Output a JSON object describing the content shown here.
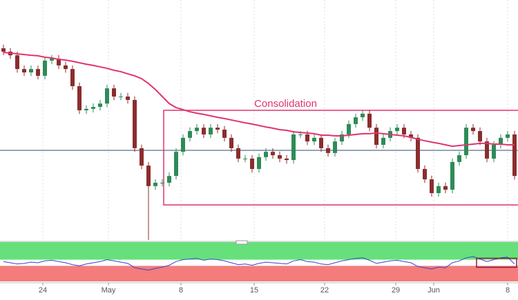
{
  "chart_data": {
    "type": "candlestick",
    "xlim": [
      -0.5,
      74.5
    ],
    "xticks": [
      {
        "value": 5.7,
        "label": "24"
      },
      {
        "value": 15.2,
        "label": "May"
      },
      {
        "value": 25.7,
        "label": "8"
      },
      {
        "value": 36.3,
        "label": "15"
      },
      {
        "value": 46.5,
        "label": "22"
      },
      {
        "value": 56.8,
        "label": "29"
      },
      {
        "value": 62.3,
        "label": "Jun"
      },
      {
        "value": 73,
        "label": "8"
      }
    ],
    "ylim": [
      0,
      100
    ],
    "grid": true,
    "up_color": "#2e8b57",
    "down_color": "#8b2d2d",
    "open": [
      80,
      78.6,
      77.1,
      71.4,
      70,
      71.4,
      68.6,
      74.9,
      75.7,
      72.9,
      71.4,
      64.3,
      54.3,
      54.9,
      55.7,
      57.1,
      63.4,
      60,
      60,
      58.6,
      38.6,
      31.4,
      22.9,
      24.3,
      24.3,
      27.1,
      37.1,
      42.9,
      45.7,
      47.1,
      44.3,
      47.1,
      46.3,
      42.9,
      38.6,
      34.3,
      34.3,
      30,
      34.9,
      37.1,
      35.7,
      34.3,
      33.7,
      44.3,
      44.3,
      41.4,
      42.9,
      38.6,
      36.6,
      41.4,
      44.3,
      48.6,
      51.4,
      52.9,
      47.1,
      40,
      42.9,
      45.7,
      47.1,
      44.3,
      42.9,
      30,
      25.7,
      20,
      22.9,
      21.4,
      32.9,
      35.7,
      47.1,
      45.7,
      41.4,
      34.3,
      40,
      42.9,
      44.3
    ],
    "high": [
      81.5,
      80.1,
      78.6,
      72.9,
      72.9,
      72.9,
      76.4,
      77.2,
      77.2,
      74.4,
      72.9,
      65.8,
      56.4,
      57.2,
      58.6,
      64.9,
      64.9,
      61.5,
      61.5,
      60.1,
      40.1,
      32.9,
      25.8,
      25.8,
      28.6,
      38.6,
      44.4,
      47.2,
      48.6,
      48.6,
      48.6,
      48.6,
      47.8,
      44.4,
      40.1,
      35.8,
      35.8,
      36.4,
      38.6,
      38.6,
      37.2,
      35.8,
      45.8,
      45.8,
      45.8,
      44.4,
      44.4,
      40.1,
      42.9,
      45.8,
      50.1,
      52.9,
      54.4,
      54.4,
      48.6,
      44.4,
      47.2,
      48.6,
      48.6,
      45.8,
      44.4,
      31.5,
      27.2,
      24.4,
      24.4,
      34.4,
      37.2,
      48.6,
      48.6,
      47.2,
      42.9,
      41.5,
      44.4,
      45.8,
      45.8
    ],
    "low": [
      77.1,
      75.6,
      69.9,
      68.5,
      68.5,
      67.1,
      67.1,
      73.4,
      71.4,
      69.9,
      62.8,
      52.8,
      52.8,
      53.4,
      54.2,
      55.6,
      58.5,
      58.5,
      57.1,
      37.1,
      29.9,
      0.6,
      21.4,
      22.8,
      22.8,
      25.6,
      35.6,
      41.4,
      44.2,
      42.8,
      42.8,
      44.8,
      41.4,
      37.1,
      32.8,
      32.8,
      28.5,
      28.5,
      33.4,
      34.2,
      32.8,
      32.2,
      32.2,
      42.8,
      39.9,
      39.9,
      37.1,
      35.1,
      35.1,
      39.9,
      42.8,
      47.1,
      49.9,
      45.6,
      38.5,
      38.5,
      41.4,
      44.2,
      42.8,
      41.4,
      28.5,
      24.2,
      18.5,
      18.5,
      19.9,
      19.9,
      31.4,
      34.2,
      44.2,
      39.9,
      32.8,
      32.8,
      38.5,
      41.4,
      25.6
    ],
    "close": [
      78.6,
      77.1,
      71.4,
      70,
      71.4,
      68.6,
      74.9,
      75.7,
      72.9,
      71.4,
      64.3,
      54.3,
      54.9,
      55.7,
      57.1,
      63.4,
      60,
      60,
      58.6,
      38.6,
      31.4,
      22.9,
      24.3,
      24.3,
      27.1,
      37.1,
      42.9,
      45.7,
      47.1,
      44.3,
      47.1,
      46.3,
      42.9,
      38.6,
      34.3,
      34.3,
      30,
      34.9,
      37.1,
      35.7,
      34.3,
      33.7,
      44.3,
      44.3,
      41.4,
      42.9,
      38.6,
      36.6,
      41.4,
      44.3,
      48.6,
      51.4,
      52.9,
      47.1,
      40,
      42.9,
      45.7,
      47.1,
      44.3,
      42.9,
      30,
      25.7,
      20,
      22.9,
      21.4,
      32.9,
      35.7,
      47.1,
      45.7,
      41.4,
      34.3,
      40,
      42.9,
      44.3,
      27.1
    ],
    "moving_average": {
      "color": "#e0336e",
      "values": [
        78.3,
        78,
        77.7,
        77.4,
        77.1,
        76.9,
        76.3,
        76,
        75.4,
        75.1,
        74.6,
        74,
        73.4,
        72.9,
        72.3,
        71.7,
        70.9,
        70.3,
        69.4,
        68.6,
        67.4,
        65.4,
        62.9,
        60,
        57.1,
        55.4,
        54.6,
        53.7,
        53.1,
        52.6,
        52,
        51.4,
        50.9,
        50.3,
        49.7,
        49.1,
        48.6,
        48,
        47.4,
        46.9,
        46.3,
        46,
        45.4,
        45.1,
        44.9,
        44.6,
        44,
        44,
        43.7,
        43.7,
        44,
        44.3,
        44.6,
        44.6,
        44.9,
        44.6,
        44.3,
        44,
        43.7,
        43.1,
        42.3,
        41.7,
        41.1,
        40.6,
        40,
        39.4,
        39.7,
        40,
        40.3,
        40.6,
        40.6,
        40.3,
        40.3,
        40,
        40
      ]
    },
    "hline": {
      "value": 37.7,
      "color": "#2c4a6e"
    },
    "annotation": {
      "text": "Consolidation",
      "color": "#e0336e",
      "x0": 23.2,
      "x1": 75,
      "y0": 15.1,
      "y1": 54.3
    },
    "oscillator": {
      "color": "#3344cc",
      "ylim": [
        20,
        80
      ],
      "upper": 55,
      "lower": 45,
      "upper_color": "#66e07a",
      "lower_color": "#f47c7c",
      "values": [
        52,
        50,
        48,
        49,
        51,
        50,
        53,
        54,
        52,
        50,
        47,
        45,
        48,
        50,
        52,
        55,
        53,
        51,
        49,
        42,
        40,
        38,
        41,
        43,
        46,
        52,
        55,
        56,
        57,
        54,
        56,
        55,
        53,
        50,
        47,
        48,
        46,
        49,
        51,
        50,
        49,
        48,
        53,
        55,
        52,
        51,
        48,
        47,
        50,
        53,
        55,
        57,
        58,
        54,
        49,
        51,
        53,
        54,
        52,
        50,
        44,
        42,
        40,
        43,
        42,
        50,
        53,
        58,
        60,
        56,
        52,
        55,
        58,
        59,
        48
      ]
    }
  }
}
